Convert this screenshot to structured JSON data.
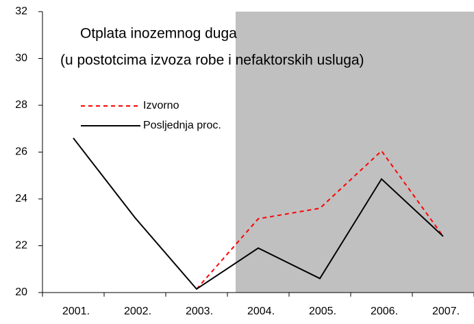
{
  "chart_data": {
    "type": "line",
    "title": [
      "Otplata inozemnog duga",
      "(u postotcima izvoza robe i nefaktorskih usluga)"
    ],
    "categories": [
      "2001.",
      "2002.",
      "2003.",
      "2004.",
      "2005.",
      "2006.",
      "2007."
    ],
    "series": [
      {
        "name": "Izvorno",
        "color": "#ff0000",
        "dash": true,
        "values": [
          null,
          null,
          20.15,
          23.15,
          23.6,
          26.05,
          22.4
        ]
      },
      {
        "name": "Posljednja proc.",
        "color": "#000000",
        "dash": false,
        "values": [
          26.6,
          23.2,
          20.15,
          21.9,
          20.6,
          24.85,
          22.4
        ]
      }
    ],
    "ylim": [
      20,
      32
    ],
    "yticks": [
      20,
      22,
      24,
      26,
      28,
      30,
      32
    ]
  }
}
